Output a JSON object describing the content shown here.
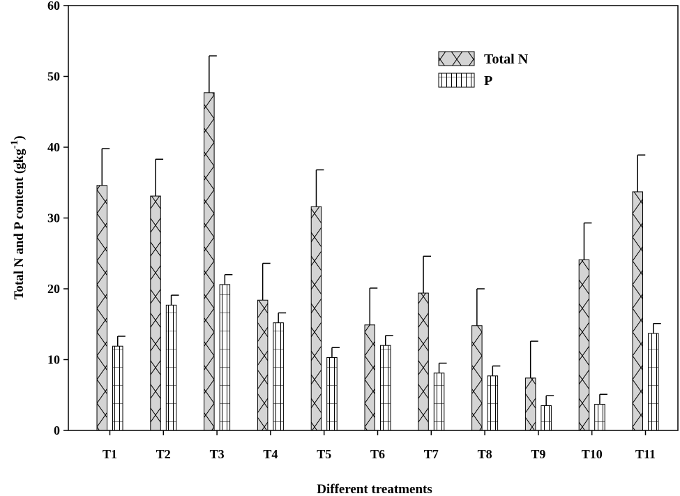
{
  "chart_data": {
    "type": "bar",
    "xlabel": "Different treatments",
    "ylabel": "Total N and P content (gkg",
    "ylabel_sup": "-1",
    "ylabel_close": ")",
    "ylim": [
      0,
      60
    ],
    "yticks": [
      0,
      10,
      20,
      30,
      40,
      50,
      60
    ],
    "grid": false,
    "legend_position": "top-right",
    "categories": [
      "T1",
      "T2",
      "T3",
      "T4",
      "T5",
      "T6",
      "T7",
      "T8",
      "T9",
      "T10",
      "T11"
    ],
    "series": [
      {
        "name": "Total N",
        "pattern": "crosshatch",
        "fill": "#d4d4d4",
        "values": [
          34.6,
          33.1,
          47.7,
          18.4,
          31.6,
          14.9,
          19.4,
          14.8,
          7.4,
          24.1,
          33.7
        ],
        "errors": [
          5.2,
          5.2,
          5.2,
          5.2,
          5.2,
          5.2,
          5.2,
          5.2,
          5.2,
          5.2,
          5.2
        ]
      },
      {
        "name": "P",
        "pattern": "grid",
        "fill": "#ffffff",
        "values": [
          11.9,
          17.7,
          20.6,
          15.2,
          10.3,
          12.0,
          8.1,
          7.7,
          3.5,
          3.7,
          13.7
        ],
        "errors": [
          1.4,
          1.4,
          1.4,
          1.4,
          1.4,
          1.4,
          1.4,
          1.4,
          1.4,
          1.4,
          1.4
        ]
      }
    ]
  }
}
